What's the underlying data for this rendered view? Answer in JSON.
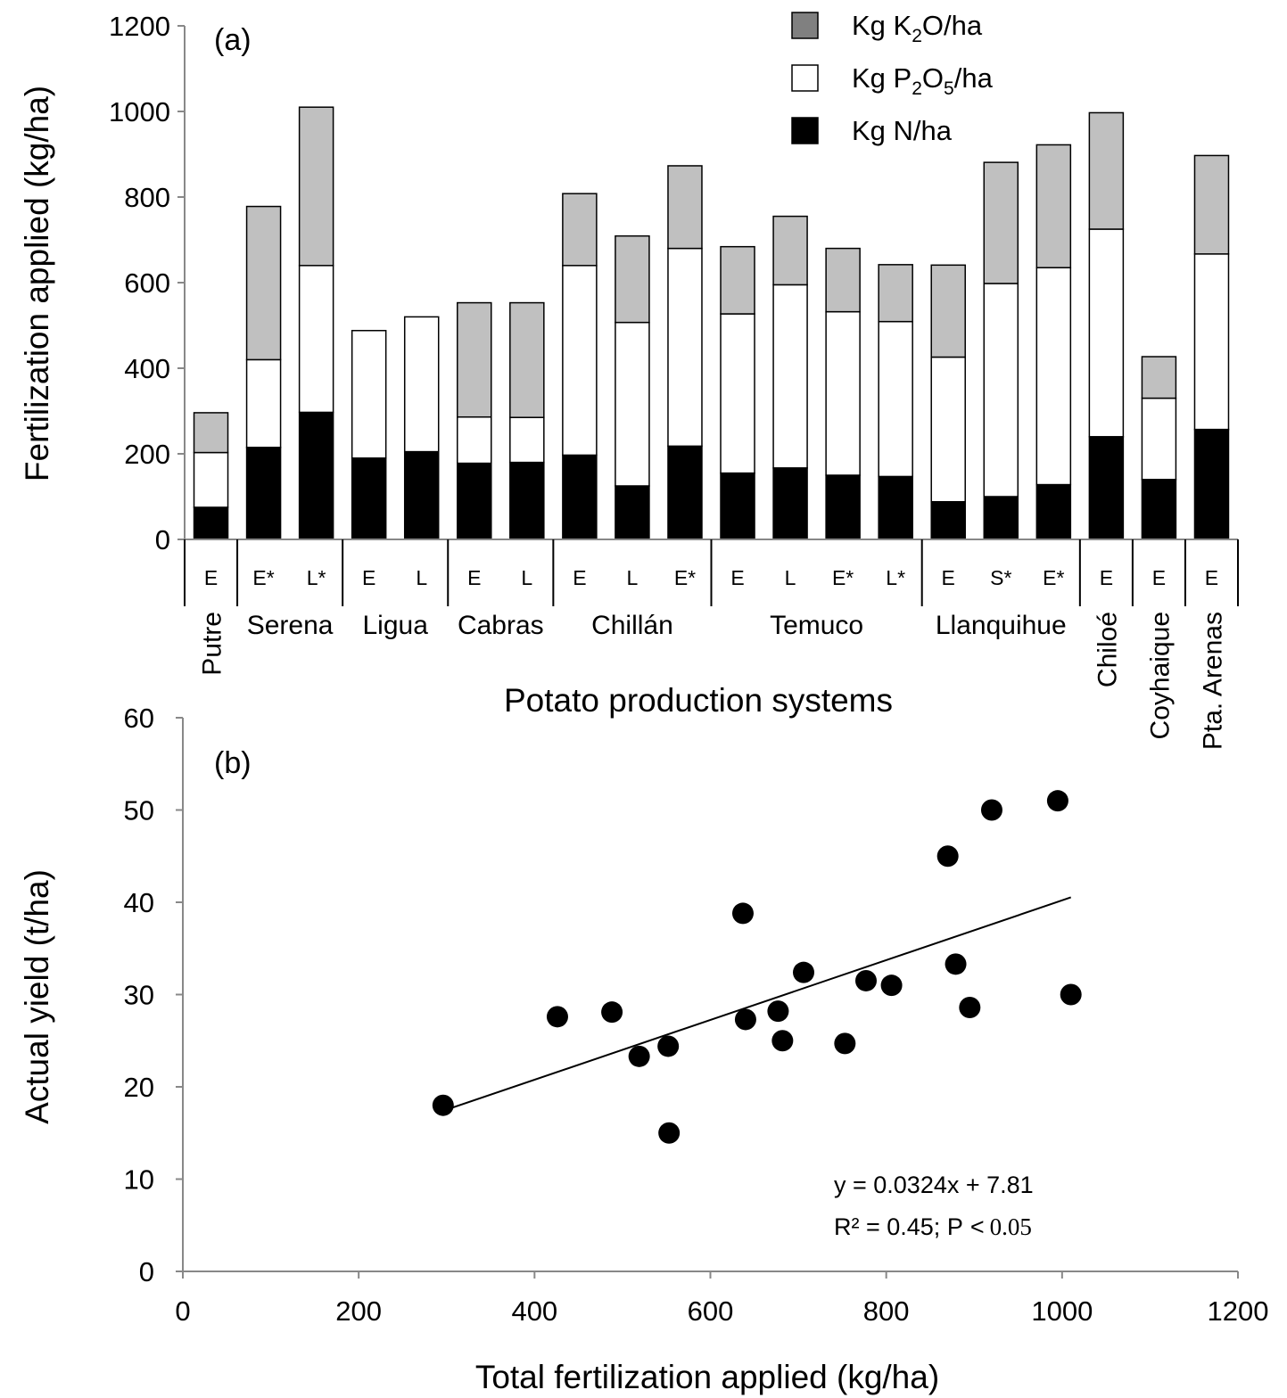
{
  "chart_data": [
    {
      "type": "bar",
      "stacked": true,
      "panel_label": "(a)",
      "xlabel": "Potato production systems",
      "ylabel": "Fertilization applied (kg/ha)",
      "ylim": [
        0,
        1200
      ],
      "yticks": [
        0,
        200,
        400,
        600,
        800,
        1000,
        1200
      ],
      "categories": [
        "E",
        "E*",
        "L*",
        "E",
        "L",
        "E",
        "L",
        "E",
        "L",
        "E*",
        "E",
        "L",
        "E*",
        "L*",
        "E",
        "S*",
        "E*",
        "E",
        "E",
        "E"
      ],
      "groups": [
        {
          "name": "Putre",
          "count": 1,
          "vertical": true
        },
        {
          "name": "Serena",
          "count": 2,
          "vertical": false
        },
        {
          "name": "Ligua",
          "count": 2,
          "vertical": false
        },
        {
          "name": "Cabras",
          "count": 2,
          "vertical": false
        },
        {
          "name": "Chillán",
          "count": 3,
          "vertical": false
        },
        {
          "name": "Temuco",
          "count": 4,
          "vertical": false
        },
        {
          "name": "Llanquihue",
          "count": 3,
          "vertical": false
        },
        {
          "name": "Chiloé",
          "count": 1,
          "vertical": true
        },
        {
          "name": "Coyhaique",
          "count": 1,
          "vertical": true
        },
        {
          "name": "Pta. Arenas",
          "count": 1,
          "vertical": true
        }
      ],
      "series": [
        {
          "name": "Kg N/ha",
          "color": "#000000",
          "values": [
            75,
            215,
            297,
            190,
            205,
            178,
            180,
            197,
            125,
            218,
            155,
            167,
            150,
            147,
            88,
            100,
            128,
            240,
            140,
            257
          ]
        },
        {
          "name": "Kg P2O5/ha",
          "color": "#ffffff",
          "values": [
            128,
            205,
            343,
            298,
            315,
            108,
            105,
            443,
            382,
            462,
            372,
            428,
            382,
            362,
            338,
            498,
            507,
            485,
            190,
            410
          ]
        },
        {
          "name": "Kg K2O/ha",
          "color": "#c0c0c0",
          "values": [
            93,
            358,
            370,
            0,
            0,
            267,
            268,
            168,
            202,
            193,
            157,
            160,
            148,
            133,
            215,
            283,
            287,
            272,
            97,
            230
          ]
        }
      ],
      "legend": [
        {
          "pre": "Kg K",
          "sub1": "2",
          "mid": "O/ha",
          "sub2": "",
          "post": "",
          "color": "#808080"
        },
        {
          "pre": "Kg P",
          "sub1": "2",
          "mid": "O",
          "sub2": "5",
          "post": "/ha",
          "color": "#ffffff"
        },
        {
          "pre": "Kg N/ha",
          "sub1": "",
          "mid": "",
          "sub2": "",
          "post": "",
          "color": "#000000"
        }
      ],
      "legend_position": "top-right"
    },
    {
      "type": "scatter",
      "panel_label": "(b)",
      "xlabel": "Total fertilization applied (kg/ha)",
      "ylabel": "Actual yield (t/ha)",
      "xlim": [
        0,
        1200
      ],
      "ylim": [
        0,
        60
      ],
      "xticks": [
        0,
        200,
        400,
        600,
        800,
        1000,
        1200
      ],
      "yticks": [
        0,
        10,
        20,
        30,
        40,
        50,
        60
      ],
      "points": [
        {
          "x": 296,
          "y": 18.0
        },
        {
          "x": 426,
          "y": 27.6
        },
        {
          "x": 488,
          "y": 28.1
        },
        {
          "x": 519,
          "y": 23.3
        },
        {
          "x": 552,
          "y": 24.4
        },
        {
          "x": 553,
          "y": 15.0
        },
        {
          "x": 637,
          "y": 38.8
        },
        {
          "x": 640,
          "y": 27.3
        },
        {
          "x": 677,
          "y": 28.2
        },
        {
          "x": 682,
          "y": 25.0
        },
        {
          "x": 706,
          "y": 32.4
        },
        {
          "x": 753,
          "y": 24.7
        },
        {
          "x": 777,
          "y": 31.5
        },
        {
          "x": 806,
          "y": 31.0
        },
        {
          "x": 870,
          "y": 45.0
        },
        {
          "x": 879,
          "y": 33.3
        },
        {
          "x": 895,
          "y": 28.6
        },
        {
          "x": 920,
          "y": 50.0
        },
        {
          "x": 995,
          "y": 51.0
        },
        {
          "x": 1010,
          "y": 30.0
        }
      ],
      "trendline": {
        "slope": 0.0324,
        "intercept": 7.81,
        "x_range": [
          296,
          1010
        ]
      },
      "equation": "y = 0.0324x + 7.81",
      "stats": "R² = 0.45; P",
      "stats_sign": "<",
      "stats_p": "0.05"
    }
  ]
}
